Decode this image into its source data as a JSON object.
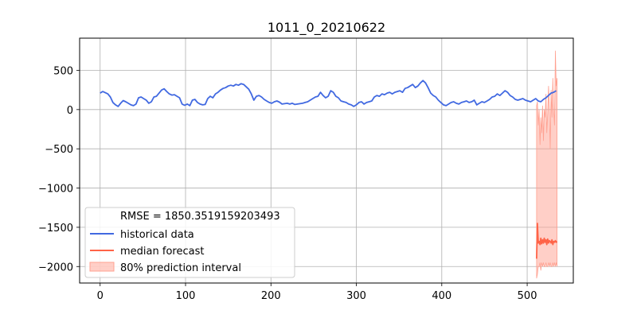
{
  "chart_data": {
    "type": "line",
    "title": "1011_0_20210622",
    "xlabel": "",
    "ylabel": "",
    "xlim": [
      -24,
      554
    ],
    "ylim": [
      -2210,
      910
    ],
    "x_ticks": [
      0,
      100,
      200,
      300,
      400,
      500
    ],
    "x_tick_labels": [
      "0",
      "100",
      "200",
      "300",
      "400",
      "500"
    ],
    "y_ticks": [
      500,
      0,
      -500,
      -1000,
      -1500,
      -2000
    ],
    "y_tick_labels": [
      "500",
      "0",
      "−500",
      "−1000",
      "−1500",
      "−2000"
    ],
    "grid": true,
    "legend_position": "lower-left",
    "legend_header": "RMSE = 1850.3519159203493",
    "colors": {
      "historical": "#4169e1",
      "median": "#ff6347",
      "interval_fill": "#ffa090",
      "grid": "#b0b0b0"
    },
    "series": [
      {
        "name": "historical data",
        "x": [
          0,
          3,
          6,
          9,
          12,
          15,
          18,
          21,
          24,
          27,
          30,
          33,
          36,
          39,
          42,
          45,
          48,
          51,
          54,
          57,
          60,
          63,
          66,
          69,
          72,
          75,
          78,
          81,
          84,
          87,
          90,
          93,
          96,
          99,
          102,
          105,
          108,
          111,
          114,
          117,
          120,
          123,
          126,
          129,
          132,
          135,
          138,
          141,
          144,
          147,
          150,
          153,
          156,
          159,
          162,
          165,
          168,
          171,
          174,
          177,
          180,
          183,
          186,
          189,
          192,
          195,
          198,
          201,
          204,
          207,
          210,
          213,
          216,
          219,
          222,
          225,
          228,
          231,
          234,
          237,
          240,
          243,
          246,
          249,
          252,
          255,
          258,
          261,
          264,
          267,
          270,
          273,
          276,
          279,
          282,
          285,
          288,
          291,
          294,
          297,
          300,
          303,
          306,
          309,
          312,
          315,
          318,
          321,
          324,
          327,
          330,
          333,
          336,
          339,
          342,
          345,
          348,
          351,
          354,
          357,
          360,
          363,
          366,
          369,
          372,
          375,
          378,
          381,
          384,
          387,
          390,
          393,
          396,
          399,
          402,
          405,
          408,
          411,
          414,
          417,
          420,
          423,
          426,
          429,
          432,
          435,
          438,
          441,
          444,
          447,
          450,
          453,
          456,
          459,
          462,
          465,
          468,
          471,
          474,
          477,
          480,
          483,
          486,
          489,
          492,
          495,
          498,
          501,
          504,
          507,
          510,
          513,
          516,
          519,
          522,
          525,
          528,
          531,
          534
        ],
        "values": [
          210,
          230,
          215,
          200,
          160,
          90,
          60,
          40,
          80,
          115,
          100,
          80,
          60,
          50,
          70,
          150,
          160,
          140,
          120,
          80,
          100,
          160,
          170,
          210,
          250,
          265,
          230,
          200,
          185,
          190,
          170,
          150,
          70,
          55,
          70,
          50,
          120,
          130,
          90,
          70,
          60,
          65,
          140,
          170,
          150,
          200,
          220,
          250,
          270,
          280,
          300,
          310,
          300,
          320,
          310,
          330,
          320,
          290,
          260,
          200,
          120,
          170,
          180,
          160,
          130,
          110,
          90,
          80,
          100,
          110,
          95,
          70,
          75,
          80,
          70,
          80,
          65,
          70,
          75,
          80,
          90,
          100,
          120,
          140,
          160,
          170,
          220,
          180,
          150,
          170,
          240,
          220,
          170,
          150,
          110,
          100,
          90,
          70,
          60,
          40,
          60,
          90,
          100,
          70,
          90,
          100,
          110,
          160,
          180,
          170,
          200,
          190,
          210,
          220,
          200,
          220,
          230,
          240,
          220,
          270,
          280,
          300,
          320,
          280,
          300,
          340,
          370,
          340,
          280,
          210,
          180,
          160,
          120,
          90,
          60,
          50,
          70,
          90,
          100,
          80,
          70,
          90,
          100,
          110,
          90,
          100,
          120,
          60,
          80,
          100,
          90,
          110,
          130,
          160,
          170,
          200,
          180,
          210,
          240,
          220,
          180,
          160,
          130,
          120,
          130,
          140,
          120,
          110,
          100,
          120,
          140,
          110,
          100,
          130,
          150,
          180,
          210,
          220,
          240
        ]
      },
      {
        "name": "median forecast",
        "x": [
          511,
          512,
          513,
          514,
          515,
          516,
          517,
          518,
          519,
          520,
          521,
          522,
          523,
          524,
          525,
          526,
          527,
          528,
          529,
          530,
          531,
          532,
          533,
          534,
          535
        ],
        "values": [
          -1900,
          -1450,
          -1700,
          -1680,
          -1720,
          -1640,
          -1710,
          -1660,
          -1700,
          -1640,
          -1690,
          -1660,
          -1720,
          -1650,
          -1700,
          -1670,
          -1680,
          -1700,
          -1660,
          -1720,
          -1680,
          -1690,
          -1670,
          -1690,
          -1680
        ]
      }
    ],
    "interval": {
      "name": "80% prediction interval",
      "x": [
        511,
        512,
        513,
        514,
        515,
        516,
        517,
        518,
        519,
        520,
        521,
        522,
        523,
        524,
        525,
        526,
        527,
        528,
        529,
        530,
        531,
        532,
        533,
        534,
        535
      ],
      "upper": [
        50,
        100,
        -200,
        0,
        -450,
        -100,
        -300,
        50,
        -400,
        0,
        -100,
        200,
        -300,
        -50,
        300,
        0,
        -500,
        250,
        -100,
        400,
        0,
        -200,
        750,
        300,
        400
      ],
      "lower": [
        -2150,
        -2100,
        -2000,
        -2000,
        -1950,
        -2050,
        -1950,
        -2000,
        -1950,
        -2000,
        -2000,
        -1950,
        -2000,
        -2000,
        -1950,
        -2000,
        -1950,
        -2000,
        -2000,
        -1950,
        -2000,
        -1950,
        -2000,
        -1950,
        -2000
      ]
    }
  }
}
